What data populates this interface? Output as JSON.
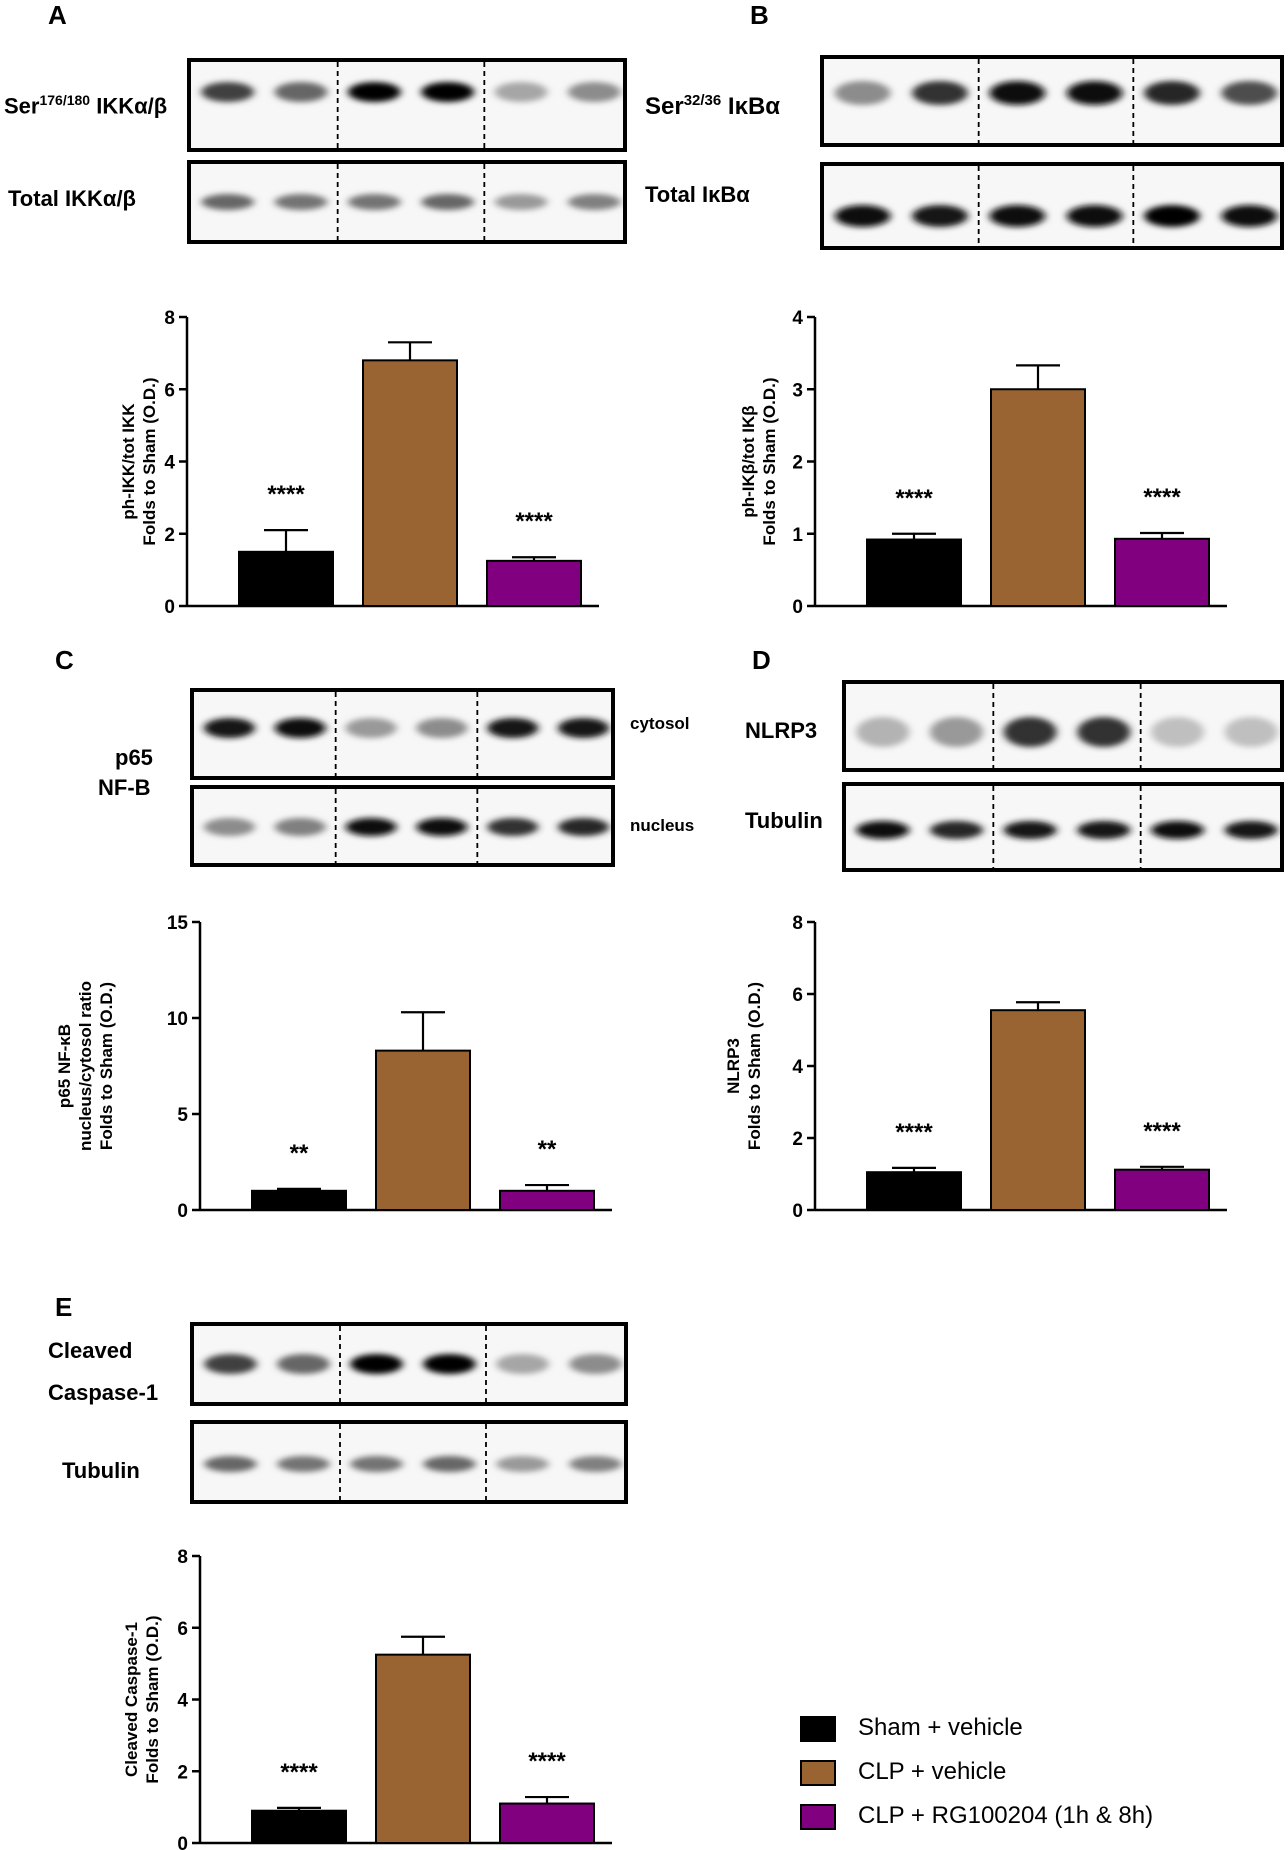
{
  "colors": {
    "sham": "#000000",
    "clp": "#9a6432",
    "rg": "#800080"
  },
  "panels": {
    "A": {
      "letter": "A",
      "blot_top": "Ser",
      "blot_top_sup": "176/180",
      "blot_top_tail": " IKKα/β",
      "blot_bottom": "Total IKKα/β"
    },
    "B": {
      "letter": "B",
      "blot_top": "Ser",
      "blot_top_sup": "32/36",
      "blot_top_tail": " IκBα",
      "blot_bottom": "Total IκBα"
    },
    "C": {
      "letter": "C",
      "protein_l1": "p65",
      "protein_l2": "NF-B",
      "blot_top": "cytosol",
      "blot_bottom": "nucleus"
    },
    "D": {
      "letter": "D",
      "blot_top": "NLRP3",
      "blot_bottom": "Tubulin"
    },
    "E": {
      "letter": "E",
      "blot_top_l1": "Cleaved",
      "blot_top_l2": "Caspase-1",
      "blot_bottom": "Tubulin"
    }
  },
  "legend": [
    {
      "label": "Sham + vehicle",
      "color": "#000000"
    },
    {
      "label": "CLP + vehicle",
      "color": "#9a6432"
    },
    {
      "label": "CLP + RG100204 (1h & 8h)",
      "color": "#800080"
    }
  ],
  "chart_data": [
    {
      "id": "A",
      "type": "bar",
      "categories": [
        "Sham + vehicle",
        "CLP + vehicle",
        "CLP + RG100204 (1h & 8h)"
      ],
      "values": [
        1.5,
        6.8,
        1.25
      ],
      "errors": [
        0.6,
        0.5,
        0.1
      ],
      "significance": [
        "****",
        "",
        "****"
      ],
      "ylabel": [
        "ph-IKK/tot IKK",
        "Folds to Sham (O.D.)"
      ],
      "ylim": [
        0,
        8
      ],
      "ticks": [
        0,
        2,
        4,
        6,
        8
      ],
      "tick_labels": [
        "0",
        "2",
        "4",
        "6",
        "8"
      ]
    },
    {
      "id": "B",
      "type": "bar",
      "categories": [
        "Sham + vehicle",
        "CLP + vehicle",
        "CLP + RG100204 (1h & 8h)"
      ],
      "values": [
        0.92,
        3.0,
        0.93
      ],
      "errors": [
        0.08,
        0.33,
        0.08
      ],
      "significance": [
        "****",
        "",
        "****"
      ],
      "ylabel": [
        "ph-IKβ/tot IKβ",
        "Folds to Sham (O.D.)"
      ],
      "ylim": [
        0,
        4
      ],
      "ticks": [
        0,
        1,
        2,
        3,
        4
      ],
      "tick_labels": [
        "0",
        "1",
        "2",
        "3",
        "4"
      ]
    },
    {
      "id": "C",
      "type": "bar",
      "categories": [
        "Sham + vehicle",
        "CLP + vehicle",
        "CLP + RG100204 (1h & 8h)"
      ],
      "values": [
        1.0,
        8.3,
        1.0
      ],
      "errors": [
        0.1,
        2.0,
        0.3
      ],
      "significance": [
        "**",
        "",
        "**"
      ],
      "ylabel": [
        "p65 NF-κB",
        "nucleus/cytosol ratio",
        "Folds to Sham (O.D.)"
      ],
      "ylim": [
        0,
        15
      ],
      "ticks": [
        0,
        5,
        10,
        15
      ],
      "tick_labels": [
        "0",
        "5",
        "10",
        "15"
      ]
    },
    {
      "id": "D",
      "type": "bar",
      "categories": [
        "Sham + vehicle",
        "CLP + vehicle",
        "CLP + RG100204 (1h & 8h)"
      ],
      "values": [
        1.05,
        5.55,
        1.12
      ],
      "errors": [
        0.12,
        0.22,
        0.08
      ],
      "significance": [
        "****",
        "",
        "****"
      ],
      "ylabel": [
        "NLRP3",
        "Folds to Sham (O.D.)"
      ],
      "ylim": [
        0,
        8
      ],
      "ticks": [
        0,
        2,
        4,
        6,
        8
      ],
      "tick_labels": [
        "0",
        "2",
        "4",
        "6",
        "8"
      ]
    },
    {
      "id": "E",
      "type": "bar",
      "categories": [
        "Sham + vehicle",
        "CLP + vehicle",
        "CLP + RG100204 (1h & 8h)"
      ],
      "values": [
        0.9,
        5.25,
        1.1
      ],
      "errors": [
        0.08,
        0.5,
        0.18
      ],
      "significance": [
        "****",
        "",
        "****"
      ],
      "ylabel": [
        "Cleaved Caspase-1",
        "Folds to Sham (O.D.)"
      ],
      "ylim": [
        0,
        8
      ],
      "ticks": [
        0,
        2,
        4,
        6,
        8
      ],
      "tick_labels": [
        "0",
        "2",
        "4",
        "6",
        "8"
      ]
    }
  ]
}
